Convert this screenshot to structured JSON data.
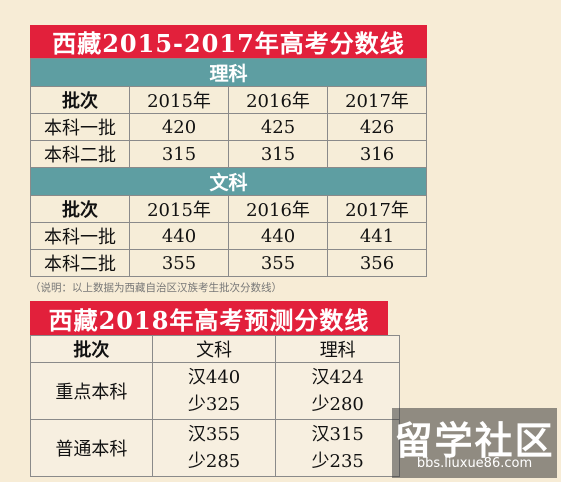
{
  "top": {
    "title": "西藏2015-2017年高考分数线",
    "science": {
      "label": "理科",
      "header": [
        "批次",
        "2015年",
        "2016年",
        "2017年"
      ],
      "rows": [
        [
          "本科一批",
          "420",
          "425",
          "426"
        ],
        [
          "本科二批",
          "315",
          "315",
          "316"
        ]
      ]
    },
    "arts": {
      "label": "文科",
      "header": [
        "批次",
        "2015年",
        "2016年",
        "2017年"
      ],
      "rows": [
        [
          "本科一批",
          "440",
          "440",
          "441"
        ],
        [
          "本科二批",
          "355",
          "355",
          "356"
        ]
      ]
    },
    "note": "（说明：以上数据为西藏自治区汉族考生批次分数线）"
  },
  "bottom": {
    "title": "西藏2018年高考预测分数线",
    "header": [
      "批次",
      "文科",
      "理科"
    ],
    "rows": [
      {
        "label": "重点本科",
        "arts": [
          "汉440",
          "少325"
        ],
        "science": [
          "汉424",
          "少280"
        ]
      },
      {
        "label": "普通本科",
        "arts": [
          "汉355",
          "少285"
        ],
        "science": [
          "汉315",
          "少235"
        ]
      }
    ]
  },
  "watermark": {
    "name": "留学社区",
    "url": "bbs.liuxue86.com"
  },
  "colors": {
    "banner_red": "#e2203b",
    "section_teal": "#5e9ea2",
    "background": "#f7ecd6"
  }
}
